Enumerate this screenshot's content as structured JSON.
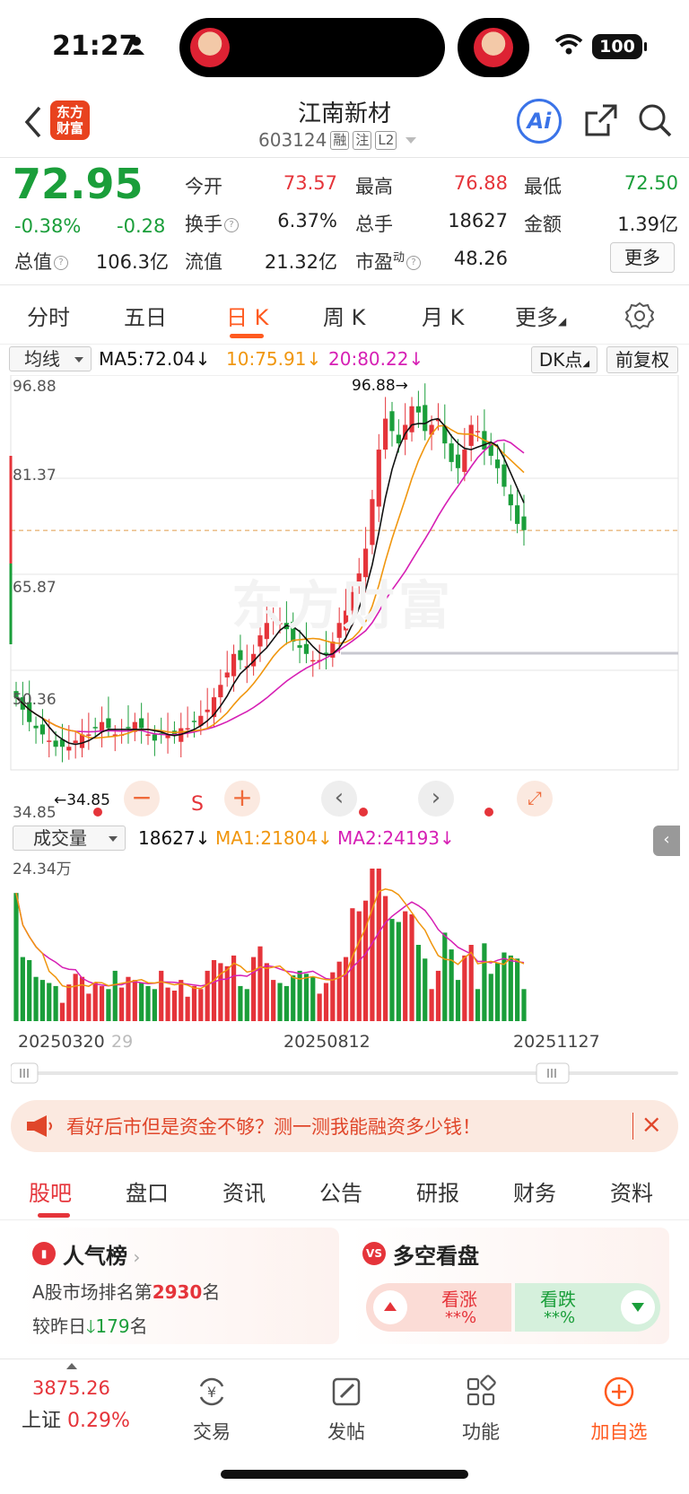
{
  "status": {
    "time": "21:27",
    "battery": "100"
  },
  "header": {
    "logo_line1": "东方",
    "logo_line2": "财富",
    "stock_name": "江南新材",
    "stock_code": "603124",
    "tags": [
      "融",
      "注",
      "L2"
    ],
    "ai_label": "Ai"
  },
  "quote": {
    "price": "72.95",
    "change_pct": "-0.38%",
    "change": "-0.28",
    "open_label": "今开",
    "open": "73.57",
    "high_label": "最高",
    "high": "76.88",
    "low_label": "最低",
    "low": "72.50",
    "turnover_label": "换手",
    "turnover": "6.37%",
    "volume_label": "总手",
    "volume": "18627",
    "amount_label": "金额",
    "amount": "1.39亿",
    "mktcap_label": "总值",
    "mktcap": "106.3亿",
    "float_label": "流值",
    "float": "21.32亿",
    "pe_label": "市盈",
    "pe_sup": "动",
    "pe": "48.26",
    "more_label": "更多"
  },
  "period_tabs": [
    "分时",
    "五日",
    "日 K",
    "周 K",
    "月 K",
    "更多"
  ],
  "active_period": 2,
  "ma_bar": {
    "selector": "均线",
    "ma5": "MA5:72.04↓",
    "ma10": "10:75.91↓",
    "ma20": "20:80.22↓",
    "dk_label": "DK点",
    "fq_label": "前复权"
  },
  "chart_labels": {
    "y_max": "96.88",
    "y_2": "81.37",
    "y_3": "65.87",
    "y_4": "50.36",
    "y_min": "34.85",
    "high_mark": "96.88→",
    "low_mark": "←34.85",
    "watermark": "东方财富",
    "s_label": "S"
  },
  "chart_data": {
    "type": "candlestick",
    "ylim": [
      34.85,
      96.88
    ],
    "y_ticks": [
      96.88,
      81.37,
      65.87,
      50.36,
      34.85
    ],
    "last_price": 72.95,
    "x_ticks": [
      "20250320",
      "20250812",
      "20251127"
    ],
    "close_approx": [
      46,
      44,
      42,
      41,
      40,
      39,
      38,
      38,
      38,
      39,
      40,
      40,
      41,
      42,
      41,
      40,
      40,
      41,
      42,
      41,
      40,
      39,
      40,
      40,
      40,
      41,
      41,
      42,
      43,
      44,
      46,
      48,
      50,
      53,
      52,
      51,
      53,
      56,
      58,
      59,
      58,
      57,
      55,
      54,
      53,
      52,
      52,
      53,
      55,
      58,
      60,
      63,
      66,
      70,
      78,
      86,
      91,
      89,
      87,
      90,
      93,
      92,
      89,
      90,
      91,
      87,
      84,
      83,
      86,
      90,
      89,
      86,
      85,
      83,
      80,
      77,
      74,
      73
    ],
    "ma5": 72.04,
    "ma10": 75.91,
    "ma20": 80.22,
    "colors": {
      "up": "#e5343a",
      "down": "#1a9e3a",
      "ma5": "#111111",
      "ma10": "#f0960e",
      "ma20": "#d61fb4"
    }
  },
  "volume_bar": {
    "selector": "成交量",
    "value": "18627↓",
    "ma1": "MA1:21804↓",
    "ma2": "MA2:24193↓",
    "max_label": "24.34万"
  },
  "x_labels": {
    "start": "20250320",
    "mid_faded": "29",
    "mid": "20250812",
    "end": "20251127"
  },
  "banner": {
    "text": "看好后市但是资金不够？测一测我能融资多少钱！"
  },
  "bottom_tabs": [
    "股吧",
    "盘口",
    "资讯",
    "公告",
    "研报",
    "财务",
    "资料"
  ],
  "cards": {
    "popularity": {
      "title": "人气榜",
      "rank_prefix": "A股市场排名第",
      "rank": "2930",
      "rank_suffix": "名",
      "change_prefix": "较昨日",
      "change": "179",
      "change_suffix": "名"
    },
    "vs": {
      "title": "多空看盘",
      "bull_label": "看涨",
      "bull_value": "**%",
      "bear_label": "看跌",
      "bear_value": "**%"
    }
  },
  "bottom_nav": {
    "index_value": "3875.26",
    "index_name": "上证",
    "index_change": "0.29%",
    "items": [
      "交易",
      "发帖",
      "功能",
      "加自选"
    ]
  }
}
